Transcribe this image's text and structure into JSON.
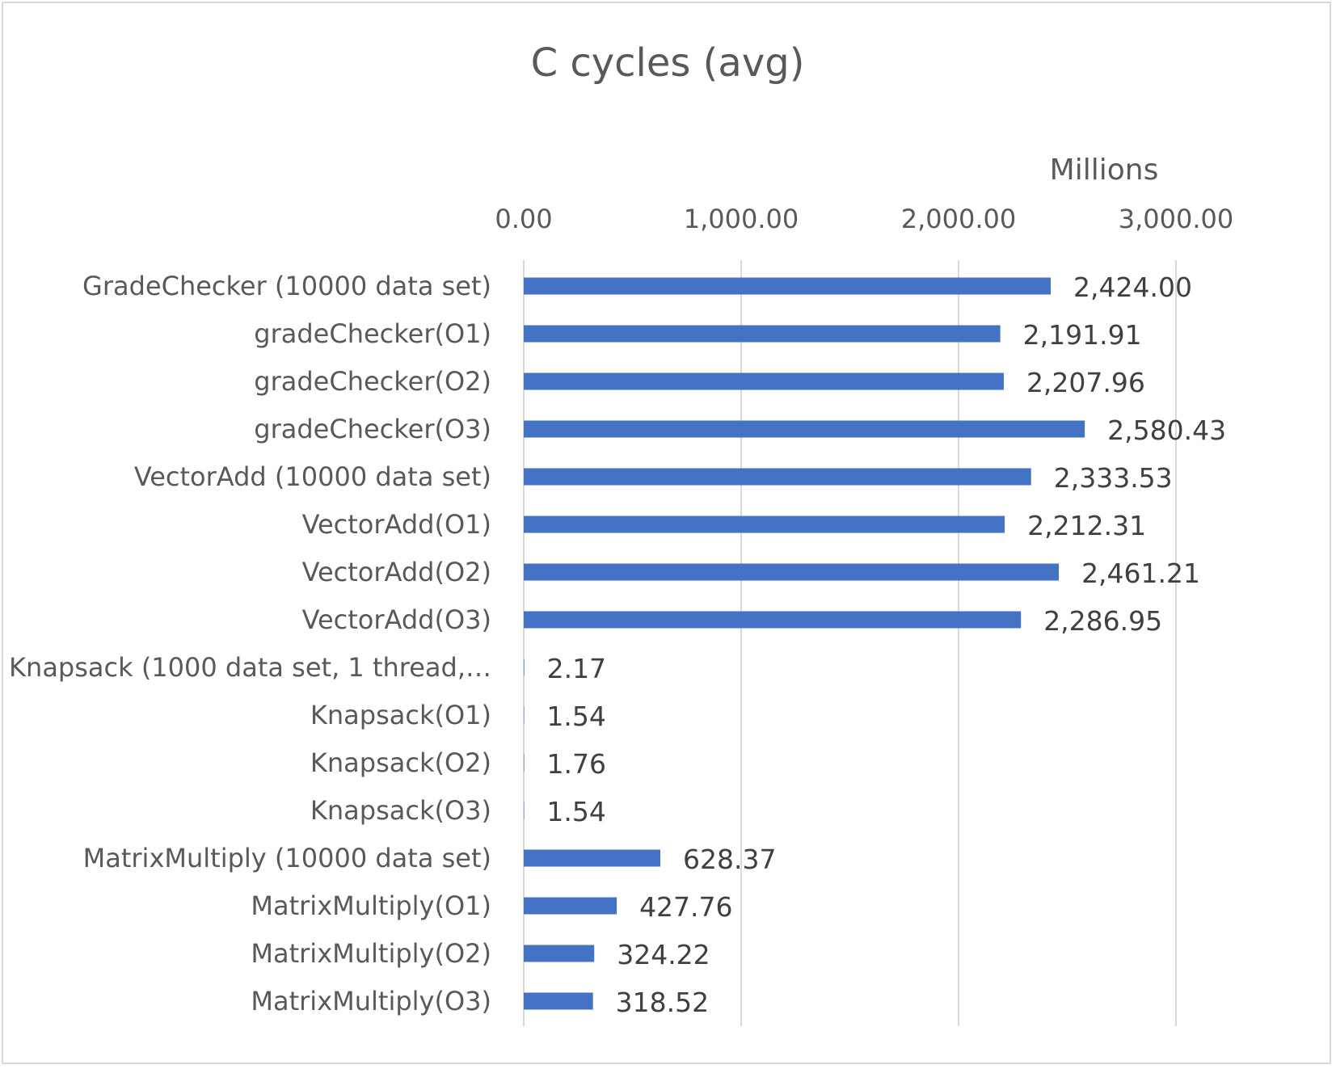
{
  "chart_data": {
    "type": "bar",
    "orientation": "horizontal",
    "title": "C cycles (avg)",
    "axis_unit_label": "Millions",
    "xlim": [
      0,
      3000
    ],
    "x_ticks": [
      "0.00",
      "1,000.00",
      "2,000.00",
      "3,000.00"
    ],
    "x_tick_values": [
      0,
      1000,
      2000,
      3000
    ],
    "x_axis_position": "top",
    "grid": true,
    "legend": "none",
    "bar_color": "#4472c4",
    "categories": [
      "GradeChecker (10000 data set)",
      "gradeChecker(O1)",
      "gradeChecker(O2)",
      "gradeChecker(O3)",
      "VectorAdd (10000 data set)",
      "VectorAdd(O1)",
      "VectorAdd(O2)",
      "VectorAdd(O3)",
      "Knapsack (1000 data set, 1 thread,…",
      "Knapsack(O1)",
      "Knapsack(O2)",
      "Knapsack(O3)",
      "MatrixMultiply (10000 data set)",
      "MatrixMultiply(O1)",
      "MatrixMultiply(O2)",
      "MatrixMultiply(O3)"
    ],
    "values": [
      2424.0,
      2191.91,
      2207.96,
      2580.43,
      2333.53,
      2212.31,
      2461.21,
      2286.95,
      2.17,
      1.54,
      1.76,
      1.54,
      628.37,
      427.76,
      324.22,
      318.52
    ],
    "data_labels": [
      "2,424.00",
      "2,191.91",
      "2,207.96",
      "2,580.43",
      "2,333.53",
      "2,212.31",
      "2,461.21",
      "2,286.95",
      "2.17",
      "1.54",
      "1.76",
      "1.54",
      "628.37",
      "427.76",
      "324.22",
      "318.52"
    ]
  }
}
